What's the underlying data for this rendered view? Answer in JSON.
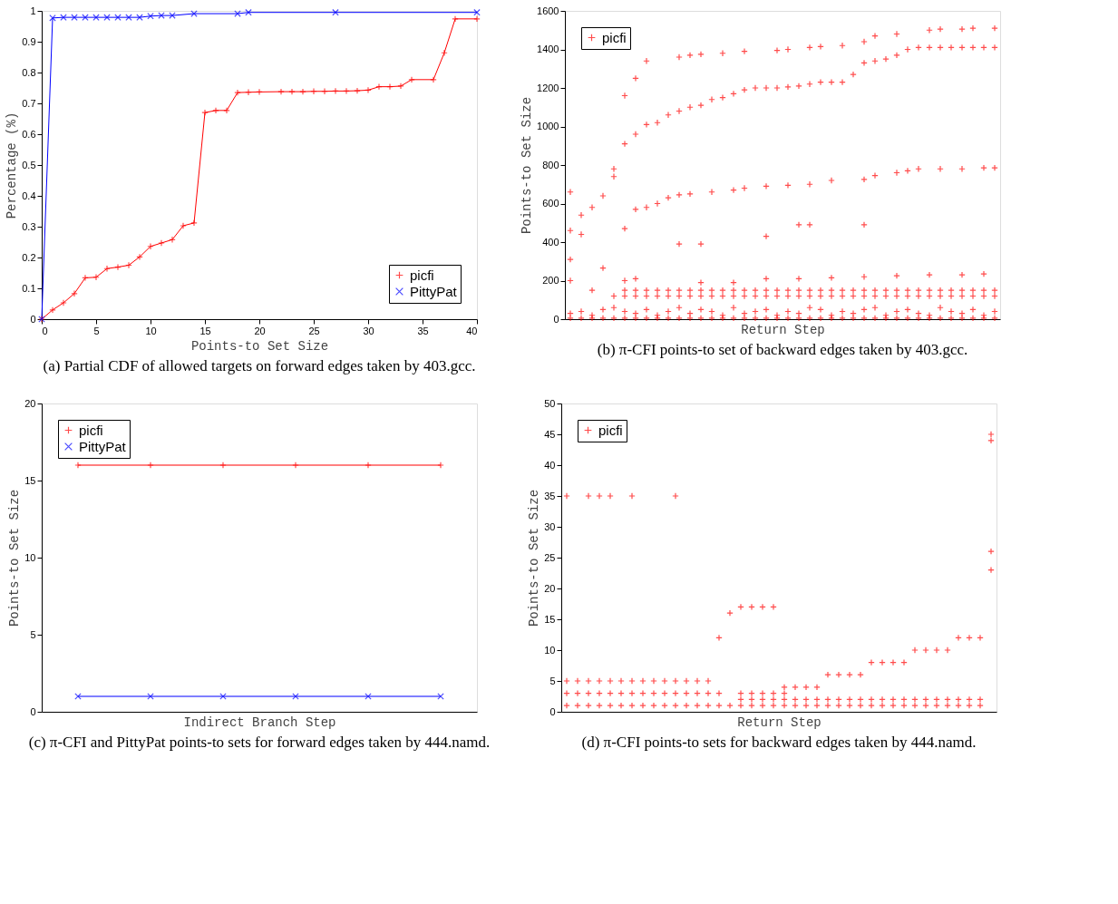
{
  "chart_data": [
    {
      "type": "line",
      "xlabel": "Points-to Set Size",
      "ylabel": "Percentage (%)",
      "xlim": [
        0,
        40
      ],
      "xticks": [
        0,
        5,
        10,
        15,
        20,
        25,
        30,
        35,
        40
      ],
      "ylim": [
        0,
        1
      ],
      "yticks": [
        0,
        0.1,
        0.2,
        0.3,
        0.4,
        0.5,
        0.6,
        0.7,
        0.8,
        0.9,
        1
      ],
      "grid": false,
      "legend": "bottom right",
      "marker": "cross",
      "annotations": [
        "(a) Partial CDF of allowed targets on forward edges taken by 403.gcc."
      ],
      "series": [
        {
          "name": "picfi",
          "color": "#ff0000",
          "marker": "cross",
          "x": [
            0,
            1,
            2,
            3,
            4,
            5,
            6,
            7,
            8,
            9,
            10,
            11,
            12,
            13,
            14,
            15,
            16,
            17,
            18,
            19,
            20,
            22,
            23,
            24,
            25,
            26,
            27,
            28,
            29,
            30,
            31,
            32,
            33,
            34,
            36,
            37,
            38,
            40
          ],
          "values": [
            0,
            0.03,
            0.053,
            0.083,
            0.134,
            0.136,
            0.164,
            0.169,
            0.175,
            0.202,
            0.236,
            0.247,
            0.258,
            0.303,
            0.312,
            0.67,
            0.677,
            0.677,
            0.735,
            0.736,
            0.737,
            0.738,
            0.738,
            0.738,
            0.739,
            0.739,
            0.74,
            0.74,
            0.741,
            0.743,
            0.754,
            0.754,
            0.756,
            0.777,
            0.777,
            0.864,
            0.974,
            0.974
          ]
        },
        {
          "name": "PittyPat",
          "color": "#0000ff",
          "marker": "x",
          "x": [
            0,
            1,
            2,
            3,
            4,
            5,
            6,
            7,
            8,
            9,
            10,
            11,
            12,
            14,
            18,
            19,
            27,
            40
          ],
          "values": [
            0,
            0.977,
            0.979,
            0.979,
            0.979,
            0.979,
            0.979,
            0.979,
            0.979,
            0.979,
            0.983,
            0.985,
            0.985,
            0.991,
            0.991,
            0.995,
            0.995,
            0.995
          ]
        }
      ]
    },
    {
      "type": "scatter",
      "xlabel": "Return Step",
      "ylabel": "Points-to Set Size",
      "categories": [
        null,
        null,
        null,
        null,
        null,
        null,
        null,
        null,
        null,
        null,
        null,
        null,
        null,
        null,
        null,
        null,
        null,
        null,
        null,
        null,
        null,
        null,
        null,
        null,
        null,
        null,
        null,
        null,
        null,
        null,
        null,
        null,
        null,
        null,
        null,
        null,
        null,
        null,
        null,
        null
      ],
      "tick_labels": "y",
      "ylim": [
        0,
        1600
      ],
      "yticks": [
        0,
        200,
        400,
        600,
        800,
        1000,
        1200,
        1400,
        1600
      ],
      "grid": false,
      "legend": "top left",
      "marker": "cross",
      "annotations": [
        "(b) π-CFI points-to set of backward edges taken by 403.gcc."
      ],
      "series": [
        {
          "name": "picfi",
          "color": "#ff0000",
          "values": [
            460,
            540,
            580,
            640,
            780,
            910,
            960,
            1010,
            1020,
            1060,
            1080,
            1100,
            1110,
            1140,
            1150,
            1170,
            1190,
            1200,
            1200,
            1200,
            1205,
            1210,
            1220,
            1230,
            1230,
            1230,
            1270,
            1330,
            1340,
            1350,
            1370,
            1400,
            1410,
            1410,
            1410,
            1410,
            1410,
            1410,
            1410,
            1410
          ]
        },
        {
          "color": "#ff0000",
          "values": [
            null,
            null,
            null,
            null,
            null,
            1160,
            1250,
            1340,
            null,
            null,
            1360,
            1370,
            1375,
            null,
            1380,
            null,
            1390,
            null,
            null,
            1395,
            1400,
            null,
            1410,
            1415,
            null,
            1420,
            null,
            1440,
            1470,
            null,
            1480,
            null,
            null,
            1500,
            1505,
            null,
            1505,
            1510,
            null,
            1510
          ]
        },
        {
          "color": "#ff0000",
          "values": [
            null,
            null,
            null,
            null,
            740,
            470,
            570,
            580,
            600,
            630,
            645,
            650,
            null,
            660,
            null,
            670,
            680,
            null,
            690,
            null,
            695,
            null,
            700,
            null,
            720,
            null,
            null,
            725,
            745,
            null,
            760,
            770,
            780,
            null,
            780,
            null,
            780,
            null,
            785,
            785
          ]
        },
        {
          "color": "#ff0000",
          "values": [
            200,
            null,
            null,
            null,
            null,
            200,
            210,
            null,
            null,
            null,
            null,
            null,
            190,
            null,
            null,
            190,
            null,
            null,
            210,
            null,
            null,
            210,
            null,
            null,
            215,
            null,
            null,
            220,
            null,
            null,
            225,
            null,
            null,
            230,
            null,
            null,
            230,
            null,
            235,
            null
          ]
        },
        {
          "color": "#ff0000",
          "values": [
            660,
            null,
            null,
            null,
            null,
            null,
            null,
            null,
            null,
            null,
            390,
            null,
            390,
            null,
            null,
            null,
            null,
            null,
            430,
            null,
            null,
            490,
            490,
            null,
            null,
            null,
            null,
            490,
            null,
            null,
            null,
            null,
            null,
            null,
            null,
            null,
            null,
            null,
            null,
            null
          ]
        },
        {
          "color": "#ff0000",
          "values": [
            310,
            440,
            150,
            265,
            null,
            null,
            null,
            null,
            null,
            null,
            null,
            null,
            null,
            null,
            null,
            null,
            null,
            null,
            null,
            null,
            null,
            null,
            null,
            null,
            null,
            null,
            null,
            null,
            null,
            null,
            null,
            null,
            null,
            null,
            null,
            null,
            null,
            null,
            null,
            null
          ]
        },
        {
          "color": "#ff0000",
          "values": [
            null,
            null,
            null,
            null,
            null,
            150,
            150,
            150,
            150,
            150,
            150,
            150,
            150,
            150,
            150,
            150,
            150,
            150,
            150,
            150,
            150,
            150,
            150,
            150,
            150,
            150,
            150,
            150,
            150,
            150,
            150,
            150,
            150,
            150,
            150,
            150,
            150,
            150,
            150,
            150
          ]
        },
        {
          "color": "#ff0000",
          "values": [
            null,
            null,
            null,
            null,
            120,
            120,
            120,
            120,
            120,
            120,
            120,
            120,
            120,
            120,
            120,
            120,
            120,
            120,
            120,
            120,
            120,
            120,
            120,
            120,
            120,
            120,
            120,
            120,
            120,
            120,
            120,
            120,
            120,
            120,
            120,
            120,
            120,
            120,
            120,
            120
          ]
        },
        {
          "color": "#ff0000",
          "values": [
            30,
            40,
            20,
            50,
            60,
            40,
            30,
            50,
            20,
            40,
            60,
            30,
            50,
            40,
            20,
            60,
            30,
            40,
            50,
            20,
            40,
            30,
            60,
            50,
            20,
            40,
            30,
            50,
            60,
            20,
            40,
            50,
            30,
            20,
            60,
            40,
            30,
            50,
            20,
            40
          ]
        },
        {
          "color": "#ff0000",
          "values": [
            5,
            5,
            5,
            5,
            5,
            5,
            5,
            5,
            5,
            5,
            5,
            5,
            5,
            5,
            5,
            5,
            5,
            5,
            5,
            5,
            5,
            5,
            5,
            5,
            5,
            5,
            5,
            5,
            5,
            5,
            5,
            5,
            5,
            5,
            5,
            5,
            5,
            5,
            5,
            5
          ]
        }
      ]
    },
    {
      "type": "line",
      "xlabel": "Indirect Branch Step",
      "ylabel": "Points-to Set Size",
      "categories": [
        null,
        null,
        null,
        null,
        null,
        null
      ],
      "tick_labels": "y",
      "ylim": [
        0,
        20
      ],
      "yticks": [
        0,
        5,
        10,
        15,
        20
      ],
      "grid": false,
      "legend": "top left",
      "marker": "cross",
      "annotations": [
        "(c) π-CFI and PittyPat points-to sets for forward edges taken by 444.namd."
      ],
      "series": [
        {
          "name": "picfi",
          "color": "#ff0000",
          "marker": "cross",
          "values": [
            16,
            16,
            16,
            16,
            16,
            16
          ]
        },
        {
          "name": "PittyPat",
          "color": "#0000ff",
          "marker": "x",
          "values": [
            1,
            1,
            1,
            1,
            1,
            1
          ]
        }
      ]
    },
    {
      "type": "scatter",
      "xlabel": "Return Step",
      "ylabel": "Points-to Set Size",
      "categories": [
        null,
        null,
        null,
        null,
        null,
        null,
        null,
        null,
        null,
        null,
        null,
        null,
        null,
        null,
        null,
        null,
        null,
        null,
        null,
        null,
        null,
        null,
        null,
        null,
        null,
        null,
        null,
        null,
        null,
        null,
        null,
        null,
        null,
        null,
        null,
        null,
        null,
        null,
        null,
        null
      ],
      "tick_labels": "y",
      "ylim": [
        0,
        50
      ],
      "yticks": [
        0,
        5,
        10,
        15,
        20,
        25,
        30,
        35,
        40,
        45,
        50
      ],
      "grid": false,
      "legend": "top left",
      "marker": "cross",
      "annotations": [
        "(d) π-CFI points-to sets for backward edges taken by 444.namd."
      ],
      "series": [
        {
          "name": "picfi",
          "color": "#ff0000",
          "values": [
            1,
            1,
            1,
            1,
            1,
            1,
            1,
            1,
            1,
            1,
            1,
            1,
            1,
            1,
            1,
            1,
            1,
            1,
            1,
            1,
            1,
            1,
            1,
            1,
            1,
            1,
            1,
            1,
            1,
            1,
            1,
            1,
            1,
            1,
            1,
            1,
            1,
            1,
            1,
            null
          ]
        },
        {
          "color": "#ff0000",
          "values": [
            null,
            null,
            null,
            null,
            null,
            null,
            null,
            null,
            null,
            null,
            null,
            null,
            null,
            null,
            null,
            null,
            2,
            2,
            2,
            2,
            2,
            2,
            2,
            2,
            2,
            2,
            2,
            2,
            2,
            2,
            2,
            2,
            2,
            2,
            2,
            2,
            2,
            2,
            2,
            null
          ]
        },
        {
          "color": "#ff0000",
          "values": [
            3,
            3,
            3,
            3,
            3,
            3,
            3,
            3,
            3,
            3,
            3,
            3,
            3,
            3,
            3,
            null,
            3,
            3,
            3,
            3,
            3,
            null,
            null,
            null,
            null,
            null,
            null,
            null,
            null,
            null,
            null,
            null,
            null,
            null,
            null,
            null,
            null,
            null,
            null,
            null
          ]
        },
        {
          "color": "#ff0000",
          "values": [
            5,
            5,
            5,
            5,
            5,
            5,
            5,
            5,
            5,
            5,
            5,
            5,
            5,
            5,
            null,
            null,
            null,
            null,
            null,
            null,
            null,
            null,
            null,
            null,
            null,
            null,
            null,
            null,
            null,
            null,
            null,
            null,
            null,
            null,
            null,
            null,
            null,
            null,
            null,
            null
          ]
        },
        {
          "color": "#ff0000",
          "values": [
            null,
            null,
            null,
            null,
            null,
            null,
            null,
            null,
            null,
            null,
            null,
            null,
            null,
            null,
            12,
            16,
            17,
            17,
            17,
            17,
            4,
            4,
            4,
            4,
            6,
            6,
            6,
            6,
            8,
            8,
            8,
            8,
            10,
            10,
            10,
            10,
            12,
            12,
            12,
            44
          ]
        },
        {
          "color": "#ff0000",
          "values": [
            35,
            null,
            35,
            35,
            35,
            null,
            35,
            null,
            null,
            null,
            35,
            null,
            null,
            null,
            null,
            null,
            null,
            null,
            null,
            null,
            null,
            null,
            null,
            null,
            null,
            null,
            null,
            null,
            null,
            null,
            null,
            null,
            null,
            null,
            null,
            null,
            null,
            null,
            null,
            null
          ]
        },
        {
          "color": "#ff0000",
          "values": [
            null,
            null,
            null,
            null,
            null,
            null,
            null,
            null,
            null,
            null,
            null,
            null,
            null,
            null,
            null,
            null,
            null,
            null,
            null,
            null,
            null,
            null,
            null,
            null,
            null,
            null,
            null,
            null,
            null,
            null,
            null,
            null,
            null,
            null,
            null,
            null,
            null,
            null,
            null,
            45
          ]
        },
        {
          "color": "#ff0000",
          "values": [
            null,
            null,
            null,
            null,
            null,
            null,
            null,
            null,
            null,
            null,
            null,
            null,
            null,
            null,
            null,
            null,
            null,
            null,
            null,
            null,
            null,
            null,
            null,
            null,
            null,
            null,
            null,
            null,
            null,
            null,
            null,
            null,
            null,
            null,
            null,
            null,
            null,
            null,
            null,
            26
          ]
        },
        {
          "color": "#ff0000",
          "values": [
            null,
            null,
            null,
            null,
            null,
            null,
            null,
            null,
            null,
            null,
            null,
            null,
            null,
            null,
            null,
            null,
            null,
            null,
            null,
            null,
            null,
            null,
            null,
            null,
            null,
            null,
            null,
            null,
            null,
            null,
            null,
            null,
            null,
            null,
            null,
            null,
            null,
            null,
            null,
            23
          ]
        }
      ]
    }
  ]
}
